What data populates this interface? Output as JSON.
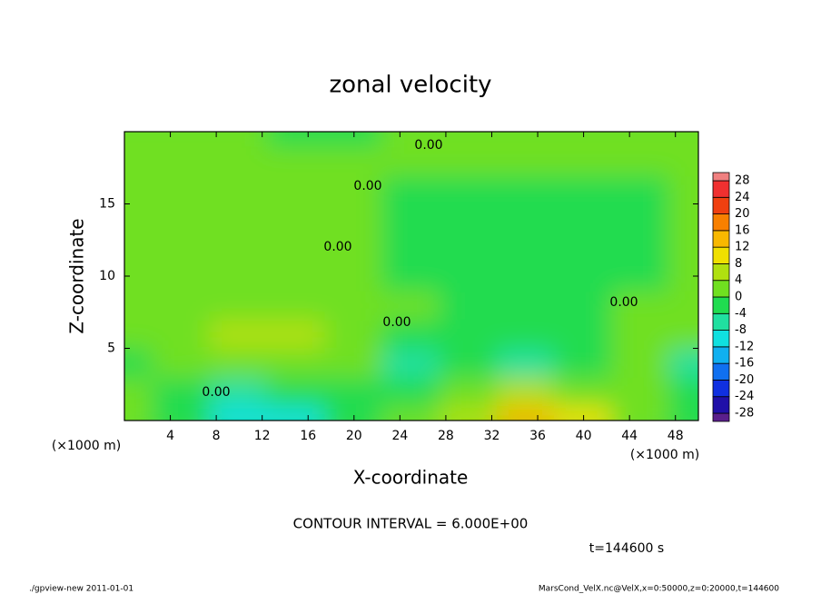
{
  "chart_data": {
    "type": "contour",
    "title": "zonal velocity",
    "x_label": "X-coordinate",
    "y_label": "Z-coordinate",
    "x_unit": "(×1000 m)",
    "y_unit": "(×1000 m)",
    "xlim": [
      0,
      50
    ],
    "ylim": [
      0,
      20
    ],
    "xticks": [
      4,
      8,
      12,
      16,
      20,
      24,
      28,
      32,
      36,
      40,
      44,
      48
    ],
    "yticks": [
      5,
      10,
      15
    ],
    "x": [
      0,
      5,
      10,
      15,
      20,
      25,
      30,
      35,
      40,
      45,
      50
    ],
    "z": [
      0,
      2,
      4,
      6,
      8,
      10,
      12,
      14,
      16,
      18,
      20
    ],
    "values": [
      [
        0,
        -4,
        -10,
        -12,
        -4,
        0,
        4,
        12,
        8,
        0,
        -2
      ],
      [
        0,
        -2,
        -6,
        -4,
        -2,
        -2,
        2,
        4,
        2,
        0,
        -4
      ],
      [
        -2,
        0,
        2,
        0,
        0,
        -8,
        -4,
        -6,
        -2,
        0,
        -6
      ],
      [
        0,
        2,
        6,
        4,
        0,
        -2,
        -2,
        -2,
        -2,
        2,
        0
      ],
      [
        2,
        2,
        2,
        2,
        0,
        0,
        -2,
        -2,
        -2,
        0,
        2
      ],
      [
        2,
        2,
        0,
        0,
        0,
        -2,
        -2,
        -2,
        -2,
        -2,
        2
      ],
      [
        2,
        2,
        0,
        0,
        2,
        -2,
        -2,
        -2,
        -2,
        -2,
        2
      ],
      [
        0,
        2,
        2,
        2,
        2,
        -2,
        -2,
        -2,
        -2,
        -2,
        2
      ],
      [
        0,
        0,
        2,
        2,
        2,
        -2,
        -2,
        -2,
        -2,
        -2,
        2
      ],
      [
        0,
        2,
        2,
        2,
        2,
        0,
        0,
        0,
        0,
        2,
        2
      ],
      [
        0,
        0,
        0,
        -2,
        -2,
        0,
        0,
        0,
        0,
        0,
        0
      ]
    ],
    "colorbar": {
      "levels": [
        -28,
        -24,
        -20,
        -16,
        -12,
        -8,
        -4,
        0,
        4,
        8,
        12,
        16,
        20,
        24,
        28
      ],
      "colors": [
        "#5a1f8c",
        "#2010a8",
        "#1030e0",
        "#1070f0",
        "#10b0f0",
        "#10e0e0",
        "#20e0a0",
        "#20dc50",
        "#70e020",
        "#b0e010",
        "#f0e000",
        "#f8b800",
        "#f88000",
        "#f04010",
        "#f03030",
        "#f08080"
      ]
    },
    "contour_labels": {
      "values": [
        0,
        0,
        0,
        0,
        0,
        0
      ],
      "value_labels": [
        "0.00",
        "0.00",
        "0.00",
        "0.00",
        "0.00",
        "0.00"
      ]
    },
    "contour_interval": "CONTOUR INTERVAL = 6.000E+00",
    "time_label": "t=144600 s",
    "footer_left": "./gpview-new  2011-01-01",
    "footer_right": "MarsCond_VelX.nc@VelX,x=0:50000,z=0:20000,t=144600"
  }
}
